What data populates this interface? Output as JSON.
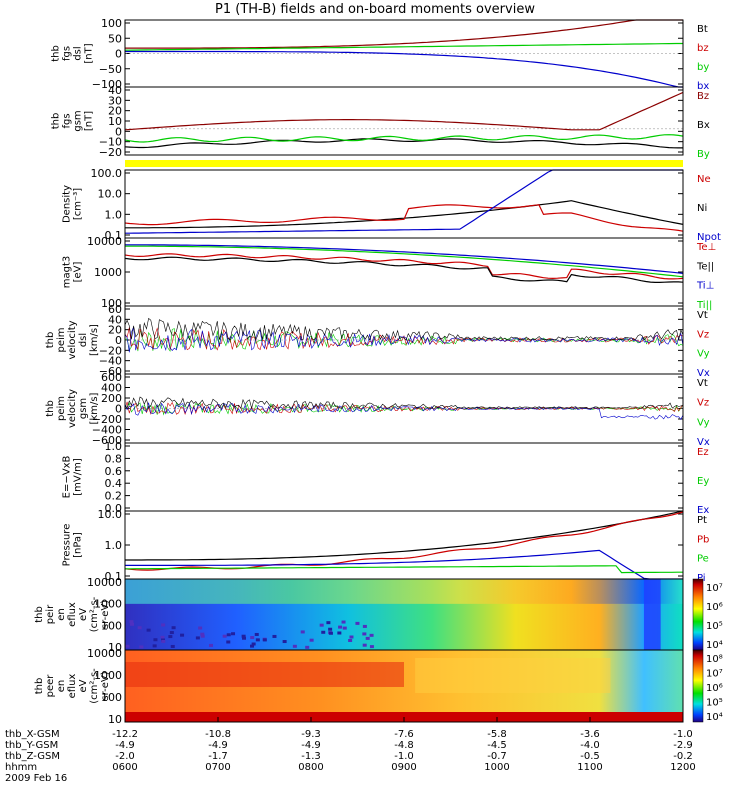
{
  "title": "P1 (TH-B) fields and on-board moments overview",
  "colors": {
    "black": "#000000",
    "red": "#cc0000",
    "green": "#00cc00",
    "blue": "#0000cc",
    "darkred": "#8b0000",
    "yellow": "#ffff00"
  },
  "chart_data": [
    {
      "type": "line",
      "id": "fgs_dsl",
      "ylabel_lines": [
        "thb",
        "fgs",
        "dsl",
        "[nT]"
      ],
      "yticks": [
        "100",
        "50",
        "0",
        "−50",
        "−100"
      ],
      "ylim": [
        -100,
        100
      ],
      "legend": [
        {
          "name": "Bt",
          "color": "black"
        },
        {
          "name": "bz",
          "color": "red"
        },
        {
          "name": "by",
          "color": "green"
        },
        {
          "name": "bx",
          "color": "blue"
        }
      ]
    },
    {
      "type": "line",
      "id": "fgs_gsm",
      "ylabel_lines": [
        "thb",
        "fgs",
        "gsm",
        "[nT]"
      ],
      "yticks": [
        "40",
        "30",
        "20",
        "10",
        "0",
        "−10",
        "−20"
      ],
      "ylim": [
        -25,
        40
      ],
      "legend": [
        {
          "name": "Bz",
          "color": "darkred"
        },
        {
          "name": "Bx",
          "color": "black"
        },
        {
          "name": "By",
          "color": "green"
        }
      ]
    },
    {
      "type": "line",
      "id": "density",
      "ylabel_lines": [
        "Density",
        "[cm⁻³]"
      ],
      "yticks": [
        "100.0",
        "10.0",
        "1.0",
        "0.1"
      ],
      "log": true,
      "legend": [
        {
          "name": "Ne",
          "color": "red"
        },
        {
          "name": "Ni",
          "color": "black"
        },
        {
          "name": "Npot",
          "color": "blue"
        }
      ]
    },
    {
      "type": "line",
      "id": "temperature",
      "ylabel_lines": [
        "magt3",
        "[eV]"
      ],
      "yticks": [
        "10000",
        "1000",
        "100"
      ],
      "log": true,
      "legend": [
        {
          "name": "Te⊥",
          "color": "red"
        },
        {
          "name": "Te||",
          "color": "black"
        },
        {
          "name": "Ti⊥",
          "color": "blue"
        },
        {
          "name": "Ti||",
          "color": "green"
        }
      ]
    },
    {
      "type": "line",
      "id": "velocity_dsl",
      "ylabel_lines": [
        "thb",
        "peim",
        "velocity",
        "dsl",
        "[km/s]"
      ],
      "yticks": [
        "60",
        "40",
        "20",
        "0",
        "−20",
        "−40",
        "−60"
      ],
      "ylim": [
        -60,
        60
      ],
      "legend": [
        {
          "name": "Vt",
          "color": "black"
        },
        {
          "name": "Vz",
          "color": "red"
        },
        {
          "name": "Vy",
          "color": "green"
        },
        {
          "name": "Vx",
          "color": "blue"
        }
      ]
    },
    {
      "type": "line",
      "id": "velocity_gsm",
      "ylabel_lines": [
        "thb",
        "peim",
        "velocity",
        "gsm",
        "[km/s]"
      ],
      "yticks": [
        "600",
        "400",
        "200",
        "0",
        "−200",
        "−400",
        "−600"
      ],
      "ylim": [
        -600,
        600
      ],
      "legend": [
        {
          "name": "Vt",
          "color": "black"
        },
        {
          "name": "Vz",
          "color": "red"
        },
        {
          "name": "Vy",
          "color": "green"
        },
        {
          "name": "Vx",
          "color": "blue"
        }
      ]
    },
    {
      "type": "line",
      "id": "efield",
      "ylabel_lines": [
        "E=−VxB",
        "[mV/m]"
      ],
      "yticks": [
        "1.0",
        "0.8",
        "0.6",
        "0.4",
        "0.2",
        "0.0"
      ],
      "ylim": [
        0,
        1
      ],
      "legend": [
        {
          "name": "Ez",
          "color": "red"
        },
        {
          "name": "Ey",
          "color": "green"
        },
        {
          "name": "Ex",
          "color": "blue"
        }
      ]
    },
    {
      "type": "line",
      "id": "pressure",
      "ylabel_lines": [
        "Pressure",
        "[nPa]"
      ],
      "yticks": [
        "10.0",
        "1.0",
        "0.1"
      ],
      "log": true,
      "legend": [
        {
          "name": "Pt",
          "color": "black"
        },
        {
          "name": "Pb",
          "color": "red"
        },
        {
          "name": "Pe",
          "color": "green"
        },
        {
          "name": "Pi",
          "color": "blue"
        }
      ]
    },
    {
      "type": "heatmap",
      "id": "ion_spec",
      "ylabel_lines": [
        "thb",
        "peir",
        "en",
        "eflux",
        "eV",
        "(cm²-s-",
        "sr-eV)"
      ],
      "yticks": [
        "10000",
        "1000",
        "100",
        "10"
      ],
      "colorbar": [
        "10⁷",
        "10⁶",
        "10⁵",
        "10⁴"
      ]
    },
    {
      "type": "heatmap",
      "id": "electron_spec",
      "ylabel_lines": [
        "thb",
        "peer",
        "en",
        "eflux",
        "eV",
        "(cm²-s-",
        "sr-eV)"
      ],
      "yticks": [
        "10000",
        "1000",
        "100",
        "10"
      ],
      "colorbar": [
        "10⁸",
        "10⁷",
        "10⁶",
        "10⁵",
        "10⁴"
      ]
    }
  ],
  "xaxis": {
    "rows": [
      {
        "label": "thb_X-GSM",
        "values": [
          "-12.2",
          "-10.8",
          "-9.3",
          "-7.6",
          "-5.8",
          "-3.6",
          "-1.0"
        ]
      },
      {
        "label": "thb_Y-GSM",
        "values": [
          "-4.9",
          "-4.9",
          "-4.9",
          "-4.8",
          "-4.5",
          "-4.0",
          "-2.9"
        ]
      },
      {
        "label": "thb_Z-GSM",
        "values": [
          "-2.0",
          "-1.7",
          "-1.3",
          "-1.0",
          "-0.7",
          "-0.5",
          "-0.2"
        ]
      },
      {
        "label": "hhmm",
        "values": [
          "0600",
          "0700",
          "0800",
          "0900",
          "1000",
          "1100",
          "1200"
        ]
      }
    ],
    "date": "2009 Feb 16"
  }
}
